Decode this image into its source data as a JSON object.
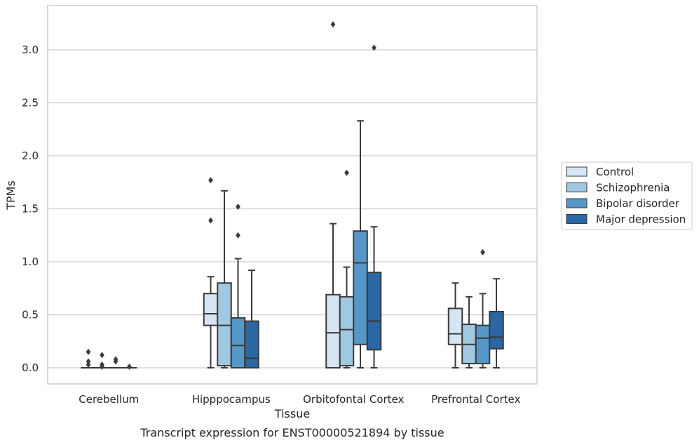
{
  "caption": "Transcript expression for ENST00000521894 by tissue",
  "chart_data": {
    "type": "boxplot",
    "xlabel": "Tissue",
    "ylabel": "TPMs",
    "ylim": [
      -0.15,
      3.42
    ],
    "yticks": [
      "0.0",
      "0.5",
      "1.0",
      "1.5",
      "2.0",
      "2.5",
      "3.0"
    ],
    "grid": "horizontal",
    "legend_position": "right",
    "categories": [
      "Cerebellum",
      "Hipppocampus",
      "Orbitofontal Cortex",
      "Prefrontal Cortex"
    ],
    "series": [
      {
        "name": "Control",
        "color": "#d6e5f4",
        "boxes": [
          {
            "whislo": 0.0,
            "q1": 0.0,
            "med": 0.0,
            "q3": 0.0,
            "whishi": 0.0,
            "fliers": [
              0.15,
              0.06,
              0.03
            ]
          },
          {
            "whislo": 0.0,
            "q1": 0.4,
            "med": 0.51,
            "q3": 0.7,
            "whishi": 0.86,
            "fliers": [
              1.77,
              1.39
            ]
          },
          {
            "whislo": 0.0,
            "q1": 0.0,
            "med": 0.33,
            "q3": 0.69,
            "whishi": 1.36,
            "fliers": [
              3.24
            ]
          },
          {
            "whislo": 0.0,
            "q1": 0.22,
            "med": 0.32,
            "q3": 0.56,
            "whishi": 0.8,
            "fliers": []
          }
        ]
      },
      {
        "name": "Schizophrenia",
        "color": "#a0c8e0",
        "boxes": [
          {
            "whislo": 0.0,
            "q1": 0.0,
            "med": 0.0,
            "q3": 0.0,
            "whishi": 0.0,
            "fliers": [
              0.12,
              0.03,
              0.01
            ]
          },
          {
            "whislo": 0.0,
            "q1": 0.02,
            "med": 0.4,
            "q3": 0.8,
            "whishi": 1.67,
            "fliers": []
          },
          {
            "whislo": 0.0,
            "q1": 0.02,
            "med": 0.36,
            "q3": 0.67,
            "whishi": 0.95,
            "fliers": [
              1.84
            ]
          },
          {
            "whislo": 0.0,
            "q1": 0.04,
            "med": 0.22,
            "q3": 0.41,
            "whishi": 0.67,
            "fliers": []
          }
        ]
      },
      {
        "name": "Bipolar disorder",
        "color": "#5597c9",
        "boxes": [
          {
            "whislo": 0.0,
            "q1": 0.0,
            "med": 0.0,
            "q3": 0.0,
            "whishi": 0.0,
            "fliers": [
              0.08,
              0.06
            ]
          },
          {
            "whislo": 0.0,
            "q1": 0.0,
            "med": 0.21,
            "q3": 0.47,
            "whishi": 1.03,
            "fliers": [
              1.52,
              1.25
            ]
          },
          {
            "whislo": 0.0,
            "q1": 0.22,
            "med": 0.99,
            "q3": 1.29,
            "whishi": 2.33,
            "fliers": []
          },
          {
            "whislo": 0.0,
            "q1": 0.04,
            "med": 0.28,
            "q3": 0.4,
            "whishi": 0.7,
            "fliers": [
              1.09
            ]
          }
        ]
      },
      {
        "name": "Major depression",
        "color": "#2a67a4",
        "boxes": [
          {
            "whislo": 0.0,
            "q1": 0.0,
            "med": 0.0,
            "q3": 0.0,
            "whishi": 0.0,
            "fliers": [
              0.01
            ]
          },
          {
            "whislo": 0.0,
            "q1": 0.0,
            "med": 0.09,
            "q3": 0.44,
            "whishi": 0.92,
            "fliers": []
          },
          {
            "whislo": 0.0,
            "q1": 0.17,
            "med": 0.44,
            "q3": 0.9,
            "whishi": 1.33,
            "fliers": [
              3.02
            ]
          },
          {
            "whislo": 0.0,
            "q1": 0.18,
            "med": 0.29,
            "q3": 0.53,
            "whishi": 0.84,
            "fliers": []
          }
        ]
      }
    ]
  }
}
